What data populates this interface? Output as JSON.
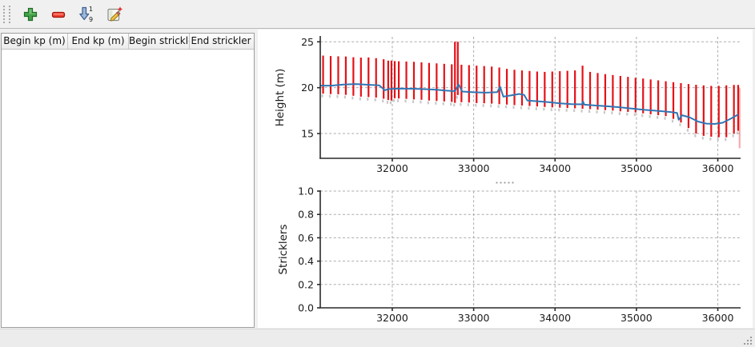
{
  "toolbar": {
    "buttons": [
      {
        "action": "add-row",
        "icon": "plus-icon"
      },
      {
        "action": "remove-row",
        "icon": "minus-icon"
      },
      {
        "action": "sort-rows",
        "icon": "sort-numeric-icon",
        "sort_top_char": "1",
        "sort_bottom_char": "9"
      },
      {
        "action": "edit",
        "icon": "edit-icon"
      }
    ]
  },
  "table": {
    "columns": [
      "Begin kp (m)",
      "End kp (m)",
      "Begin strickler",
      "End strickler"
    ],
    "rows": []
  },
  "colors": {
    "bar_red": "#e41117",
    "bar_red_faded": "rgba(228,17,23,0.35)",
    "bar_shadow": "#c9c9c9",
    "line_blue": "#2f76b5",
    "grid": "#ababab",
    "window_bg": "#f0f0f0"
  },
  "chart_data": [
    {
      "type": "bar",
      "title": "",
      "xlabel": "",
      "ylabel": "Height (m)",
      "xlim": [
        31115,
        36280
      ],
      "ylim": [
        12.3,
        25.55
      ],
      "grid": true,
      "legend": "none",
      "xticks": [
        {
          "v": 32000,
          "label": "32000"
        },
        {
          "v": 33000,
          "label": "33000"
        },
        {
          "v": 34000,
          "label": "34000"
        },
        {
          "v": 35000,
          "label": "35000"
        },
        {
          "v": 36000,
          "label": "36000"
        }
      ],
      "yticks": [
        {
          "v": 15,
          "label": "15"
        },
        {
          "v": 20,
          "label": "20"
        },
        {
          "v": 25,
          "label": "25"
        }
      ],
      "series": [
        {
          "name": "cross-section-range-bars",
          "type": "vbar",
          "color": "#e41117",
          "width": 2.2,
          "shadow": true,
          "shadow_color": "#c9c9c9",
          "shadow_drop": 0.4,
          "bars": [
            [
              31150,
              19.35,
              23.5
            ],
            [
              31243,
              19.3,
              23.45
            ],
            [
              31336,
              19.28,
              23.42
            ],
            [
              31429,
              19.22,
              23.4
            ],
            [
              31522,
              19.12,
              23.32
            ],
            [
              31615,
              19.02,
              23.28
            ],
            [
              31708,
              18.98,
              23.3
            ],
            [
              31801,
              18.92,
              23.22
            ],
            [
              31894,
              18.8,
              23.1
            ],
            [
              31950,
              18.65,
              22.95
            ],
            [
              31990,
              18.6,
              22.95
            ],
            [
              32030,
              18.85,
              22.9
            ],
            [
              32080,
              18.82,
              22.88
            ],
            [
              32173,
              18.78,
              22.85
            ],
            [
              32266,
              18.72,
              22.82
            ],
            [
              32359,
              18.68,
              22.76
            ],
            [
              32452,
              18.6,
              22.7
            ],
            [
              32545,
              18.55,
              22.65
            ],
            [
              32638,
              18.5,
              22.6
            ],
            [
              32731,
              18.45,
              22.55
            ],
            [
              32770,
              18.35,
              25.0
            ],
            [
              32805,
              19.2,
              25.0
            ],
            [
              32850,
              18.42,
              22.5
            ],
            [
              32943,
              18.38,
              22.46
            ],
            [
              33036,
              18.32,
              22.4
            ],
            [
              33129,
              18.3,
              22.36
            ],
            [
              33222,
              18.26,
              22.3
            ],
            [
              33315,
              18.2,
              22.2
            ],
            [
              33408,
              18.16,
              22.05
            ],
            [
              33501,
              18.1,
              21.95
            ],
            [
              33594,
              18.05,
              21.88
            ],
            [
              33687,
              18.0,
              21.82
            ],
            [
              33780,
              17.95,
              21.76
            ],
            [
              33873,
              17.9,
              21.72
            ],
            [
              33966,
              17.85,
              21.76
            ],
            [
              34059,
              17.82,
              21.8
            ],
            [
              34152,
              17.78,
              21.84
            ],
            [
              34245,
              17.75,
              21.88
            ],
            [
              34338,
              17.7,
              22.4
            ],
            [
              34431,
              17.66,
              21.72
            ],
            [
              34524,
              17.6,
              21.6
            ],
            [
              34617,
              17.55,
              21.48
            ],
            [
              34710,
              17.5,
              21.38
            ],
            [
              34803,
              17.42,
              21.28
            ],
            [
              34896,
              17.36,
              21.18
            ],
            [
              34989,
              17.3,
              21.08
            ],
            [
              35082,
              17.2,
              21.0
            ],
            [
              35175,
              17.1,
              20.9
            ],
            [
              35268,
              17.0,
              20.8
            ],
            [
              35361,
              16.9,
              20.7
            ],
            [
              35454,
              16.6,
              20.6
            ],
            [
              35547,
              16.2,
              20.5
            ],
            [
              35640,
              15.6,
              20.4
            ],
            [
              35733,
              15.0,
              20.32
            ],
            [
              35826,
              14.75,
              20.25
            ],
            [
              35919,
              14.65,
              20.2
            ],
            [
              36012,
              14.6,
              20.2
            ],
            [
              36105,
              14.6,
              20.25
            ],
            [
              36198,
              15.0,
              20.3
            ],
            [
              36250,
              15.3,
              20.3
            ]
          ]
        },
        {
          "name": "partial-end-bar",
          "type": "vbar",
          "color": "rgba(228,17,23,0.35)",
          "width": 2.2,
          "bars": [
            [
              36268,
              13.4,
              19.95
            ]
          ]
        },
        {
          "name": "water-height-line",
          "type": "line",
          "color": "#2f76b5",
          "width": 2,
          "points": [
            [
              31115,
              20.22
            ],
            [
              31250,
              20.22
            ],
            [
              31400,
              20.35
            ],
            [
              31550,
              20.4
            ],
            [
              31700,
              20.32
            ],
            [
              31840,
              20.26
            ],
            [
              31880,
              19.95
            ],
            [
              31905,
              19.72
            ],
            [
              31960,
              19.85
            ],
            [
              32100,
              19.9
            ],
            [
              32250,
              19.88
            ],
            [
              32400,
              19.84
            ],
            [
              32550,
              19.78
            ],
            [
              32650,
              19.68
            ],
            [
              32770,
              19.62
            ],
            [
              32815,
              20.35
            ],
            [
              32860,
              19.58
            ],
            [
              33000,
              19.5
            ],
            [
              33150,
              19.46
            ],
            [
              33290,
              19.52
            ],
            [
              33325,
              20.1
            ],
            [
              33365,
              19.02
            ],
            [
              33470,
              19.18
            ],
            [
              33560,
              19.32
            ],
            [
              33620,
              19.22
            ],
            [
              33660,
              18.6
            ],
            [
              33780,
              18.52
            ],
            [
              33920,
              18.42
            ],
            [
              34060,
              18.3
            ],
            [
              34200,
              18.2
            ],
            [
              34330,
              18.18
            ],
            [
              34345,
              18.48
            ],
            [
              34360,
              18.15
            ],
            [
              34470,
              18.08
            ],
            [
              34620,
              17.98
            ],
            [
              34780,
              17.88
            ],
            [
              34940,
              17.72
            ],
            [
              35100,
              17.58
            ],
            [
              35260,
              17.48
            ],
            [
              35420,
              17.35
            ],
            [
              35500,
              17.25
            ],
            [
              35520,
              16.5
            ],
            [
              35560,
              17.0
            ],
            [
              35650,
              16.78
            ],
            [
              35760,
              16.3
            ],
            [
              35860,
              16.08
            ],
            [
              35960,
              16.05
            ],
            [
              36060,
              16.18
            ],
            [
              36160,
              16.62
            ],
            [
              36250,
              17.08
            ]
          ]
        }
      ]
    },
    {
      "type": "bar",
      "title": "",
      "xlabel": "",
      "ylabel": "Stricklers",
      "xlim": [
        31115,
        36280
      ],
      "ylim": [
        0.0,
        1.0
      ],
      "grid": true,
      "legend": "none",
      "xticks": [
        {
          "v": 32000,
          "label": "32000"
        },
        {
          "v": 33000,
          "label": "33000"
        },
        {
          "v": 34000,
          "label": "34000"
        },
        {
          "v": 35000,
          "label": "35000"
        },
        {
          "v": 36000,
          "label": "36000"
        }
      ],
      "yticks": [
        {
          "v": 0.0,
          "label": "0.0"
        },
        {
          "v": 0.2,
          "label": "0.2"
        },
        {
          "v": 0.4,
          "label": "0.4"
        },
        {
          "v": 0.6,
          "label": "0.6"
        },
        {
          "v": 0.8,
          "label": "0.8"
        },
        {
          "v": 1.0,
          "label": "1.0"
        }
      ],
      "series": []
    }
  ]
}
